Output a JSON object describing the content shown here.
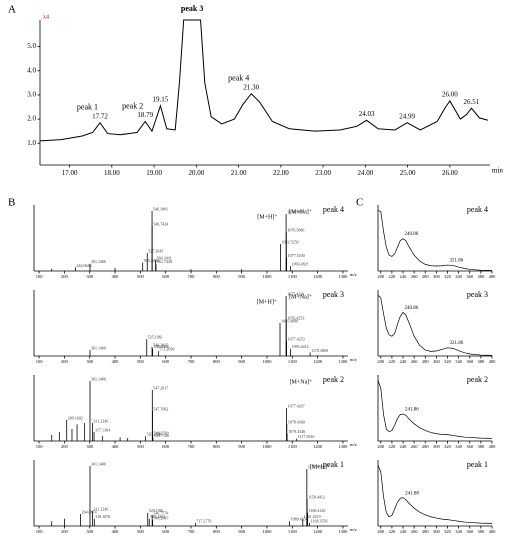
{
  "panel_labels": [
    "A",
    "B",
    "C"
  ],
  "chart_data": [
    {
      "type": "line",
      "corner_note": "x4",
      "x_label": "min",
      "color": "#000000",
      "x": [
        16.3,
        16.8,
        17.3,
        17.55,
        17.72,
        17.9,
        18.2,
        18.6,
        18.79,
        18.95,
        19.15,
        19.3,
        19.5,
        19.6,
        19.7,
        20.1,
        20.2,
        20.35,
        20.6,
        20.9,
        21.1,
        21.3,
        21.5,
        21.8,
        22.2,
        22.8,
        23.4,
        23.8,
        24.03,
        24.3,
        24.7,
        24.99,
        25.3,
        25.7,
        25.9,
        26.0,
        26.25,
        26.4,
        26.51,
        26.7,
        26.9
      ],
      "values": [
        1.1,
        1.15,
        1.3,
        1.45,
        1.85,
        1.4,
        1.35,
        1.45,
        1.9,
        1.5,
        2.55,
        1.6,
        1.55,
        3.5,
        6.1,
        6.1,
        3.5,
        2.1,
        1.8,
        2.0,
        2.6,
        3.05,
        2.7,
        1.9,
        1.6,
        1.5,
        1.55,
        1.7,
        1.95,
        1.6,
        1.55,
        1.85,
        1.55,
        1.9,
        2.5,
        2.75,
        2.0,
        2.2,
        2.45,
        2.05,
        1.95
      ],
      "xlim": [
        16.3,
        26.95
      ],
      "ylim": [
        0.1,
        6.1
      ],
      "xticks": [
        {
          "value": 17,
          "label": "17.00"
        },
        {
          "value": 18,
          "label": "18.00"
        },
        {
          "value": 19,
          "label": "19.00"
        },
        {
          "value": 20,
          "label": "20.00"
        },
        {
          "value": 21,
          "label": "21.00"
        },
        {
          "value": 22,
          "label": "22.00"
        },
        {
          "value": 23,
          "label": "23.00"
        },
        {
          "value": 24,
          "label": "24.00"
        },
        {
          "value": 25,
          "label": "25.00"
        },
        {
          "value": 26,
          "label": "26.00"
        }
      ],
      "yticks": [
        {
          "value": 1,
          "label": "1.0"
        },
        {
          "value": 2,
          "label": "2.0"
        },
        {
          "value": 3,
          "label": "3.0"
        },
        {
          "value": 4,
          "label": "4.0"
        },
        {
          "value": 5,
          "label": "5.0"
        }
      ],
      "peaks": {
        "x": [
          17.72,
          18.79,
          19.15,
          19.9,
          21.3,
          24.03,
          24.99,
          26.0,
          26.51
        ],
        "names": [
          "peak 1",
          "peak 2",
          null,
          "peak 3",
          "peak 4",
          null,
          null,
          null,
          null
        ],
        "value_labels": [
          "17.72",
          "18.79",
          "19.15",
          null,
          "21.30",
          "24.03",
          "24.99",
          "26.00",
          "26.51"
        ]
      }
    },
    {
      "type": "stick",
      "title": "peak 4",
      "x_label": "m/z",
      "color": "#000000",
      "xlim": [
        80,
        1320
      ],
      "ylim": [
        0,
        110
      ],
      "xticks": [
        100,
        200,
        300,
        400,
        500,
        600,
        700,
        800,
        900,
        1000,
        1100,
        1200,
        1300
      ],
      "x": [
        150,
        244.06,
        301.14,
        400,
        509.2,
        527.26,
        546.18,
        546.74,
        560.24,
        561.74,
        700,
        900,
        1053.52,
        1075.51,
        1076.51,
        1077.51,
        1093.48
      ],
      "values": [
        4,
        6,
        12,
        5,
        14,
        30,
        100,
        75,
        18,
        12,
        3,
        3,
        45,
        95,
        65,
        22,
        8
      ],
      "value_labels": [
        null,
        "244.0646",
        "301.1400",
        null,
        "509.2030",
        "527.2645",
        "546.1801",
        "546.7424",
        "560.2401",
        "561.7428",
        null,
        null,
        "1053.5250",
        "1075.5087",
        "1076.5086",
        "1077.5100",
        "1093.4821"
      ],
      "ions": {
        "labels": [
          "[M+H]⁺",
          "[M+Na]⁺"
        ],
        "x": [
          1053.52,
          1075.51
        ]
      }
    },
    {
      "type": "stick",
      "title": "peak 3",
      "x_label": "m/z",
      "color": "#000000",
      "xlim": [
        80,
        1320
      ],
      "ylim": [
        0,
        110
      ],
      "xticks": [
        100,
        200,
        300,
        400,
        500,
        600,
        700,
        800,
        900,
        1000,
        1100,
        1200,
        1300
      ],
      "x": [
        301.14,
        525.2,
        546.2,
        548.29,
        571.2,
        1051.5,
        1075.42,
        1076.43,
        1077.43,
        1093.44,
        1170.39
      ],
      "values": [
        10,
        28,
        15,
        12,
        8,
        55,
        100,
        60,
        25,
        12,
        6
      ],
      "value_labels": [
        "301.1400",
        "525.1961",
        "546.2015",
        "548.2900",
        "571.2050",
        "1051.4990",
        "1075.4216",
        "1076.4253",
        "1077.4253",
        "1093.4412",
        "1170.3869"
      ],
      "ions": {
        "labels": [
          "[M+H]⁺",
          "[M+Na]⁺"
        ],
        "x": [
          1051.5,
          1075.42
        ]
      }
    },
    {
      "type": "stick",
      "title": "peak 2",
      "x_label": "m/z",
      "color": "#000000",
      "xlim": [
        80,
        1320
      ],
      "ylim": [
        0,
        110
      ],
      "xticks": [
        100,
        200,
        300,
        400,
        500,
        600,
        700,
        800,
        900,
        1000,
        1100,
        1200,
        1300
      ],
      "x": [
        150,
        180,
        209.16,
        230,
        250,
        280,
        301.14,
        311.22,
        317.14,
        350,
        420,
        450,
        520.21,
        547.2,
        547.71,
        548.25,
        549.71,
        1077.43,
        1078.44,
        1079.43,
        1117.39
      ],
      "values": [
        10,
        15,
        35,
        20,
        28,
        30,
        100,
        30,
        15,
        8,
        6,
        5,
        8,
        85,
        50,
        10,
        6,
        55,
        28,
        12,
        4
      ],
      "value_labels": [
        null,
        null,
        "209.1602",
        null,
        null,
        null,
        "301.1400",
        "311.2246",
        "317.1364",
        null,
        null,
        null,
        "520.2136",
        "547.2017",
        "547.7062",
        "548.2500",
        "549.7106",
        "1077.4267",
        "1078.4360",
        "1079.4346",
        "1117.3916"
      ],
      "ions": {
        "labels": [
          "[M+Na]⁺"
        ],
        "x": [
          1077.43
        ]
      }
    },
    {
      "type": "stick",
      "title": "peak 1",
      "x_label": "m/z",
      "color": "#000000",
      "xlim": [
        80,
        1320
      ],
      "ylim": [
        0,
        110
      ],
      "xticks": [
        100,
        200,
        300,
        400,
        500,
        600,
        700,
        800,
        900,
        1000,
        1100,
        1200,
        1300
      ],
      "x": [
        150,
        200,
        264.07,
        301.14,
        311.22,
        318.17,
        529.2,
        535.13,
        546.76,
        548.2,
        717.28,
        1089.43,
        1141.42,
        1157.46,
        1158.44,
        1160.41,
        1168.36
      ],
      "values": [
        8,
        12,
        20,
        100,
        25,
        12,
        22,
        12,
        18,
        10,
        5,
        8,
        12,
        95,
        45,
        22,
        5
      ],
      "value_labels": [
        null,
        null,
        "264.0674",
        "301.1400",
        "311.2246",
        "318.1676",
        "529.1961",
        "535.1262",
        "546.7570",
        "548.2047",
        "717.2770",
        "1089.4254",
        "1141.4219",
        "1157.4553",
        "1158.4412",
        "1160.4126",
        "1168.3556"
      ],
      "ions": {
        "labels": [
          "[M+H]⁺"
        ],
        "x": [
          1157.46
        ]
      }
    },
    {
      "type": "line",
      "title": "peak 4",
      "color": "#000000",
      "xlim": [
        195,
        400
      ],
      "ylim": [
        0,
        5
      ],
      "xticks": [
        200,
        220,
        240,
        260,
        280,
        300,
        320,
        340,
        360,
        380,
        400
      ],
      "x": [
        195,
        200,
        205,
        210,
        215,
        220,
        225,
        230,
        235,
        240,
        245,
        250,
        260,
        270,
        280,
        290,
        300,
        310,
        320,
        330,
        340,
        350,
        360,
        380,
        400
      ],
      "values": [
        4.6,
        4.5,
        3.0,
        1.8,
        1.2,
        1.1,
        1.3,
        1.8,
        2.3,
        2.45,
        2.3,
        1.9,
        1.2,
        0.75,
        0.5,
        0.4,
        0.38,
        0.4,
        0.45,
        0.42,
        0.3,
        0.2,
        0.12,
        0.06,
        0.04
      ],
      "peaks": [
        240.86,
        321.86
      ]
    },
    {
      "type": "line",
      "title": "peak 3",
      "color": "#000000",
      "xlim": [
        195,
        400
      ],
      "ylim": [
        0,
        5
      ],
      "xticks": [
        200,
        220,
        240,
        260,
        280,
        300,
        320,
        340,
        360,
        380,
        400
      ],
      "x": [
        195,
        200,
        205,
        210,
        215,
        220,
        225,
        230,
        235,
        240,
        245,
        250,
        260,
        270,
        280,
        290,
        300,
        310,
        320,
        330,
        340,
        350,
        360,
        380,
        400
      ],
      "values": [
        4.6,
        4.4,
        3.2,
        2.1,
        1.6,
        1.5,
        1.7,
        2.4,
        3.0,
        3.3,
        3.1,
        2.6,
        1.5,
        0.8,
        0.45,
        0.35,
        0.38,
        0.5,
        0.62,
        0.58,
        0.4,
        0.25,
        0.15,
        0.07,
        0.05
      ],
      "peaks": [
        240.86,
        321.86
      ]
    },
    {
      "type": "line",
      "title": "peak 2",
      "color": "#000000",
      "xlim": [
        195,
        400
      ],
      "ylim": [
        0,
        5
      ],
      "xticks": [
        200,
        220,
        240,
        260,
        280,
        300,
        320,
        340,
        360,
        380,
        400
      ],
      "x": [
        195,
        200,
        205,
        210,
        215,
        220,
        225,
        230,
        235,
        240,
        245,
        250,
        260,
        270,
        280,
        290,
        300,
        310,
        320,
        330,
        340,
        350,
        360,
        380,
        400
      ],
      "values": [
        4.6,
        4.0,
        2.0,
        0.9,
        0.7,
        0.8,
        1.2,
        1.7,
        2.0,
        2.05,
        1.95,
        1.7,
        1.3,
        1.0,
        0.8,
        0.65,
        0.55,
        0.5,
        0.48,
        0.42,
        0.35,
        0.3,
        0.27,
        0.22,
        0.2
      ],
      "peaks": [
        241.86
      ]
    },
    {
      "type": "line",
      "title": "peak 1",
      "color": "#000000",
      "xlim": [
        195,
        400
      ],
      "ylim": [
        0,
        5
      ],
      "xticks": [
        200,
        220,
        240,
        260,
        280,
        300,
        320,
        340,
        360,
        380,
        400
      ],
      "x": [
        195,
        200,
        205,
        210,
        215,
        220,
        225,
        230,
        235,
        240,
        245,
        250,
        260,
        270,
        280,
        290,
        300,
        310,
        320,
        330,
        340,
        350,
        360,
        380,
        400
      ],
      "values": [
        4.6,
        4.1,
        2.2,
        1.0,
        0.7,
        0.8,
        1.3,
        1.8,
        2.1,
        2.15,
        2.0,
        1.75,
        1.35,
        1.05,
        0.85,
        0.7,
        0.6,
        0.52,
        0.48,
        0.42,
        0.36,
        0.3,
        0.27,
        0.22,
        0.2
      ],
      "peaks": [
        241.88
      ]
    }
  ]
}
